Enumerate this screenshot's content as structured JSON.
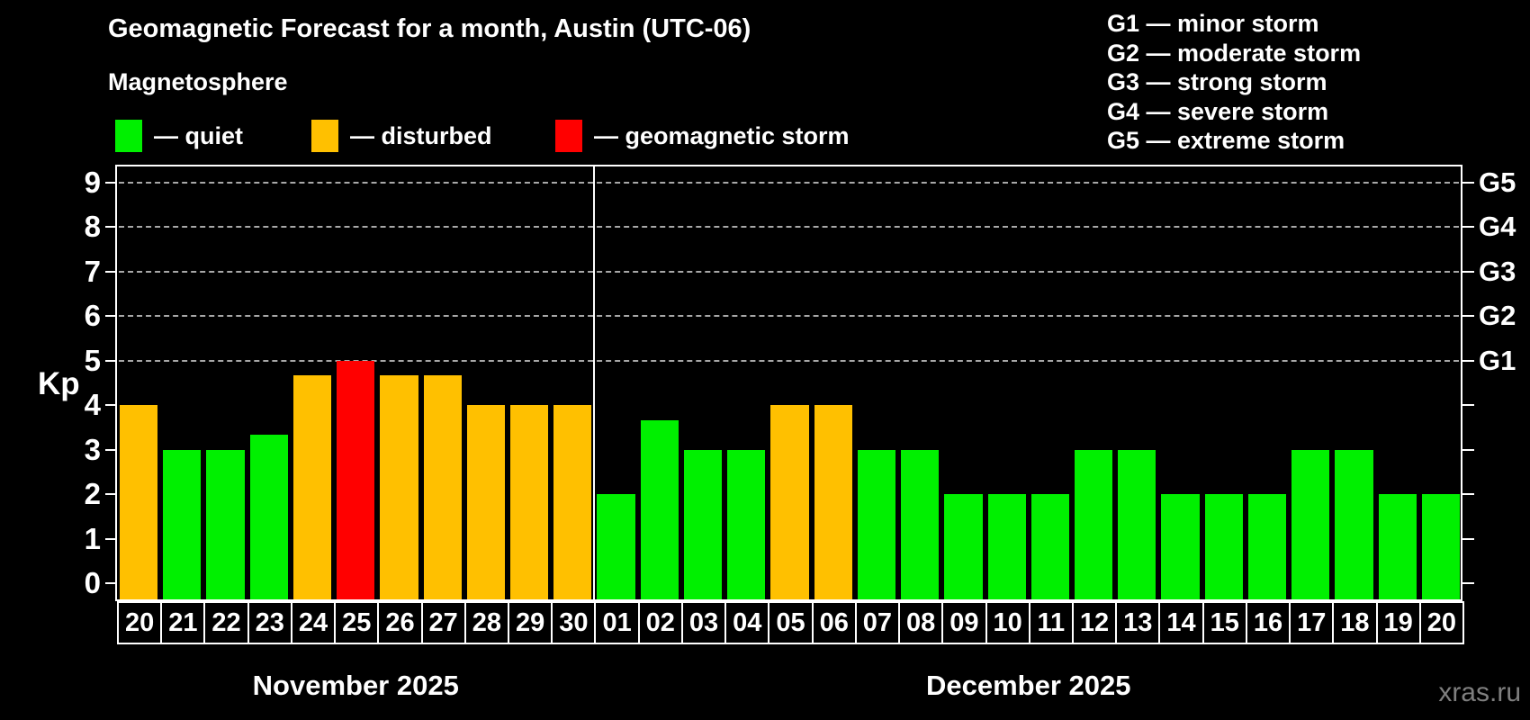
{
  "header": {
    "title": "Geomagnetic Forecast for a month, Austin (UTC-06)",
    "subtitle": "Magnetosphere"
  },
  "legend": {
    "items": [
      {
        "key": "quiet",
        "label": "— quiet"
      },
      {
        "key": "disturbed",
        "label": "— disturbed"
      },
      {
        "key": "storm",
        "label": "— geomagnetic storm"
      }
    ]
  },
  "g_scale_legend": {
    "lines": [
      "G1 — minor storm",
      "G2 — moderate storm",
      "G3 — strong storm",
      "G4 — severe storm",
      "G5 — extreme storm"
    ]
  },
  "colors": {
    "quiet": "#00F000",
    "disturbed": "#FFC000",
    "storm": "#FF0000",
    "background": "#000000",
    "axis": "#FFFFFF",
    "gridline": "#A8A8A8",
    "watermark": "#7F7F7F"
  },
  "watermark": "xras.ru",
  "chart_data": {
    "type": "bar",
    "title": "Geomagnetic Forecast for a month, Austin (UTC-06)",
    "ylabel": "Kp",
    "ylim": [
      0,
      9
    ],
    "y_ticks": [
      0,
      1,
      2,
      3,
      4,
      5,
      6,
      7,
      8,
      9
    ],
    "gridlines_at": [
      5,
      6,
      7,
      8,
      9
    ],
    "right_axis": {
      "labels": [
        "G1",
        "G2",
        "G3",
        "G4",
        "G5"
      ],
      "at_values": [
        5,
        6,
        7,
        8,
        9
      ]
    },
    "legend_position": "top",
    "grid": "dashed horizontal at storm levels only",
    "months": [
      {
        "label": "November 2025",
        "bars": [
          {
            "day": "20",
            "kp": 4.0,
            "status": "disturbed"
          },
          {
            "day": "21",
            "kp": 3.0,
            "status": "quiet"
          },
          {
            "day": "22",
            "kp": 3.0,
            "status": "quiet"
          },
          {
            "day": "23",
            "kp": 3.33,
            "status": "quiet"
          },
          {
            "day": "24",
            "kp": 4.67,
            "status": "disturbed"
          },
          {
            "day": "25",
            "kp": 5.0,
            "status": "storm"
          },
          {
            "day": "26",
            "kp": 4.67,
            "status": "disturbed"
          },
          {
            "day": "27",
            "kp": 4.67,
            "status": "disturbed"
          },
          {
            "day": "28",
            "kp": 4.0,
            "status": "disturbed"
          },
          {
            "day": "29",
            "kp": 4.0,
            "status": "disturbed"
          },
          {
            "day": "30",
            "kp": 4.0,
            "status": "disturbed"
          }
        ]
      },
      {
        "label": "December 2025",
        "bars": [
          {
            "day": "01",
            "kp": 2.0,
            "status": "quiet"
          },
          {
            "day": "02",
            "kp": 3.67,
            "status": "quiet"
          },
          {
            "day": "03",
            "kp": 3.0,
            "status": "quiet"
          },
          {
            "day": "04",
            "kp": 3.0,
            "status": "quiet"
          },
          {
            "day": "05",
            "kp": 4.0,
            "status": "disturbed"
          },
          {
            "day": "06",
            "kp": 4.0,
            "status": "disturbed"
          },
          {
            "day": "07",
            "kp": 3.0,
            "status": "quiet"
          },
          {
            "day": "08",
            "kp": 3.0,
            "status": "quiet"
          },
          {
            "day": "09",
            "kp": 2.0,
            "status": "quiet"
          },
          {
            "day": "10",
            "kp": 2.0,
            "status": "quiet"
          },
          {
            "day": "11",
            "kp": 2.0,
            "status": "quiet"
          },
          {
            "day": "12",
            "kp": 3.0,
            "status": "quiet"
          },
          {
            "day": "13",
            "kp": 3.0,
            "status": "quiet"
          },
          {
            "day": "14",
            "kp": 2.0,
            "status": "quiet"
          },
          {
            "day": "15",
            "kp": 2.0,
            "status": "quiet"
          },
          {
            "day": "16",
            "kp": 2.0,
            "status": "quiet"
          },
          {
            "day": "17",
            "kp": 3.0,
            "status": "quiet"
          },
          {
            "day": "18",
            "kp": 3.0,
            "status": "quiet"
          },
          {
            "day": "19",
            "kp": 2.0,
            "status": "quiet"
          },
          {
            "day": "20",
            "kp": 2.0,
            "status": "quiet"
          }
        ]
      }
    ]
  }
}
